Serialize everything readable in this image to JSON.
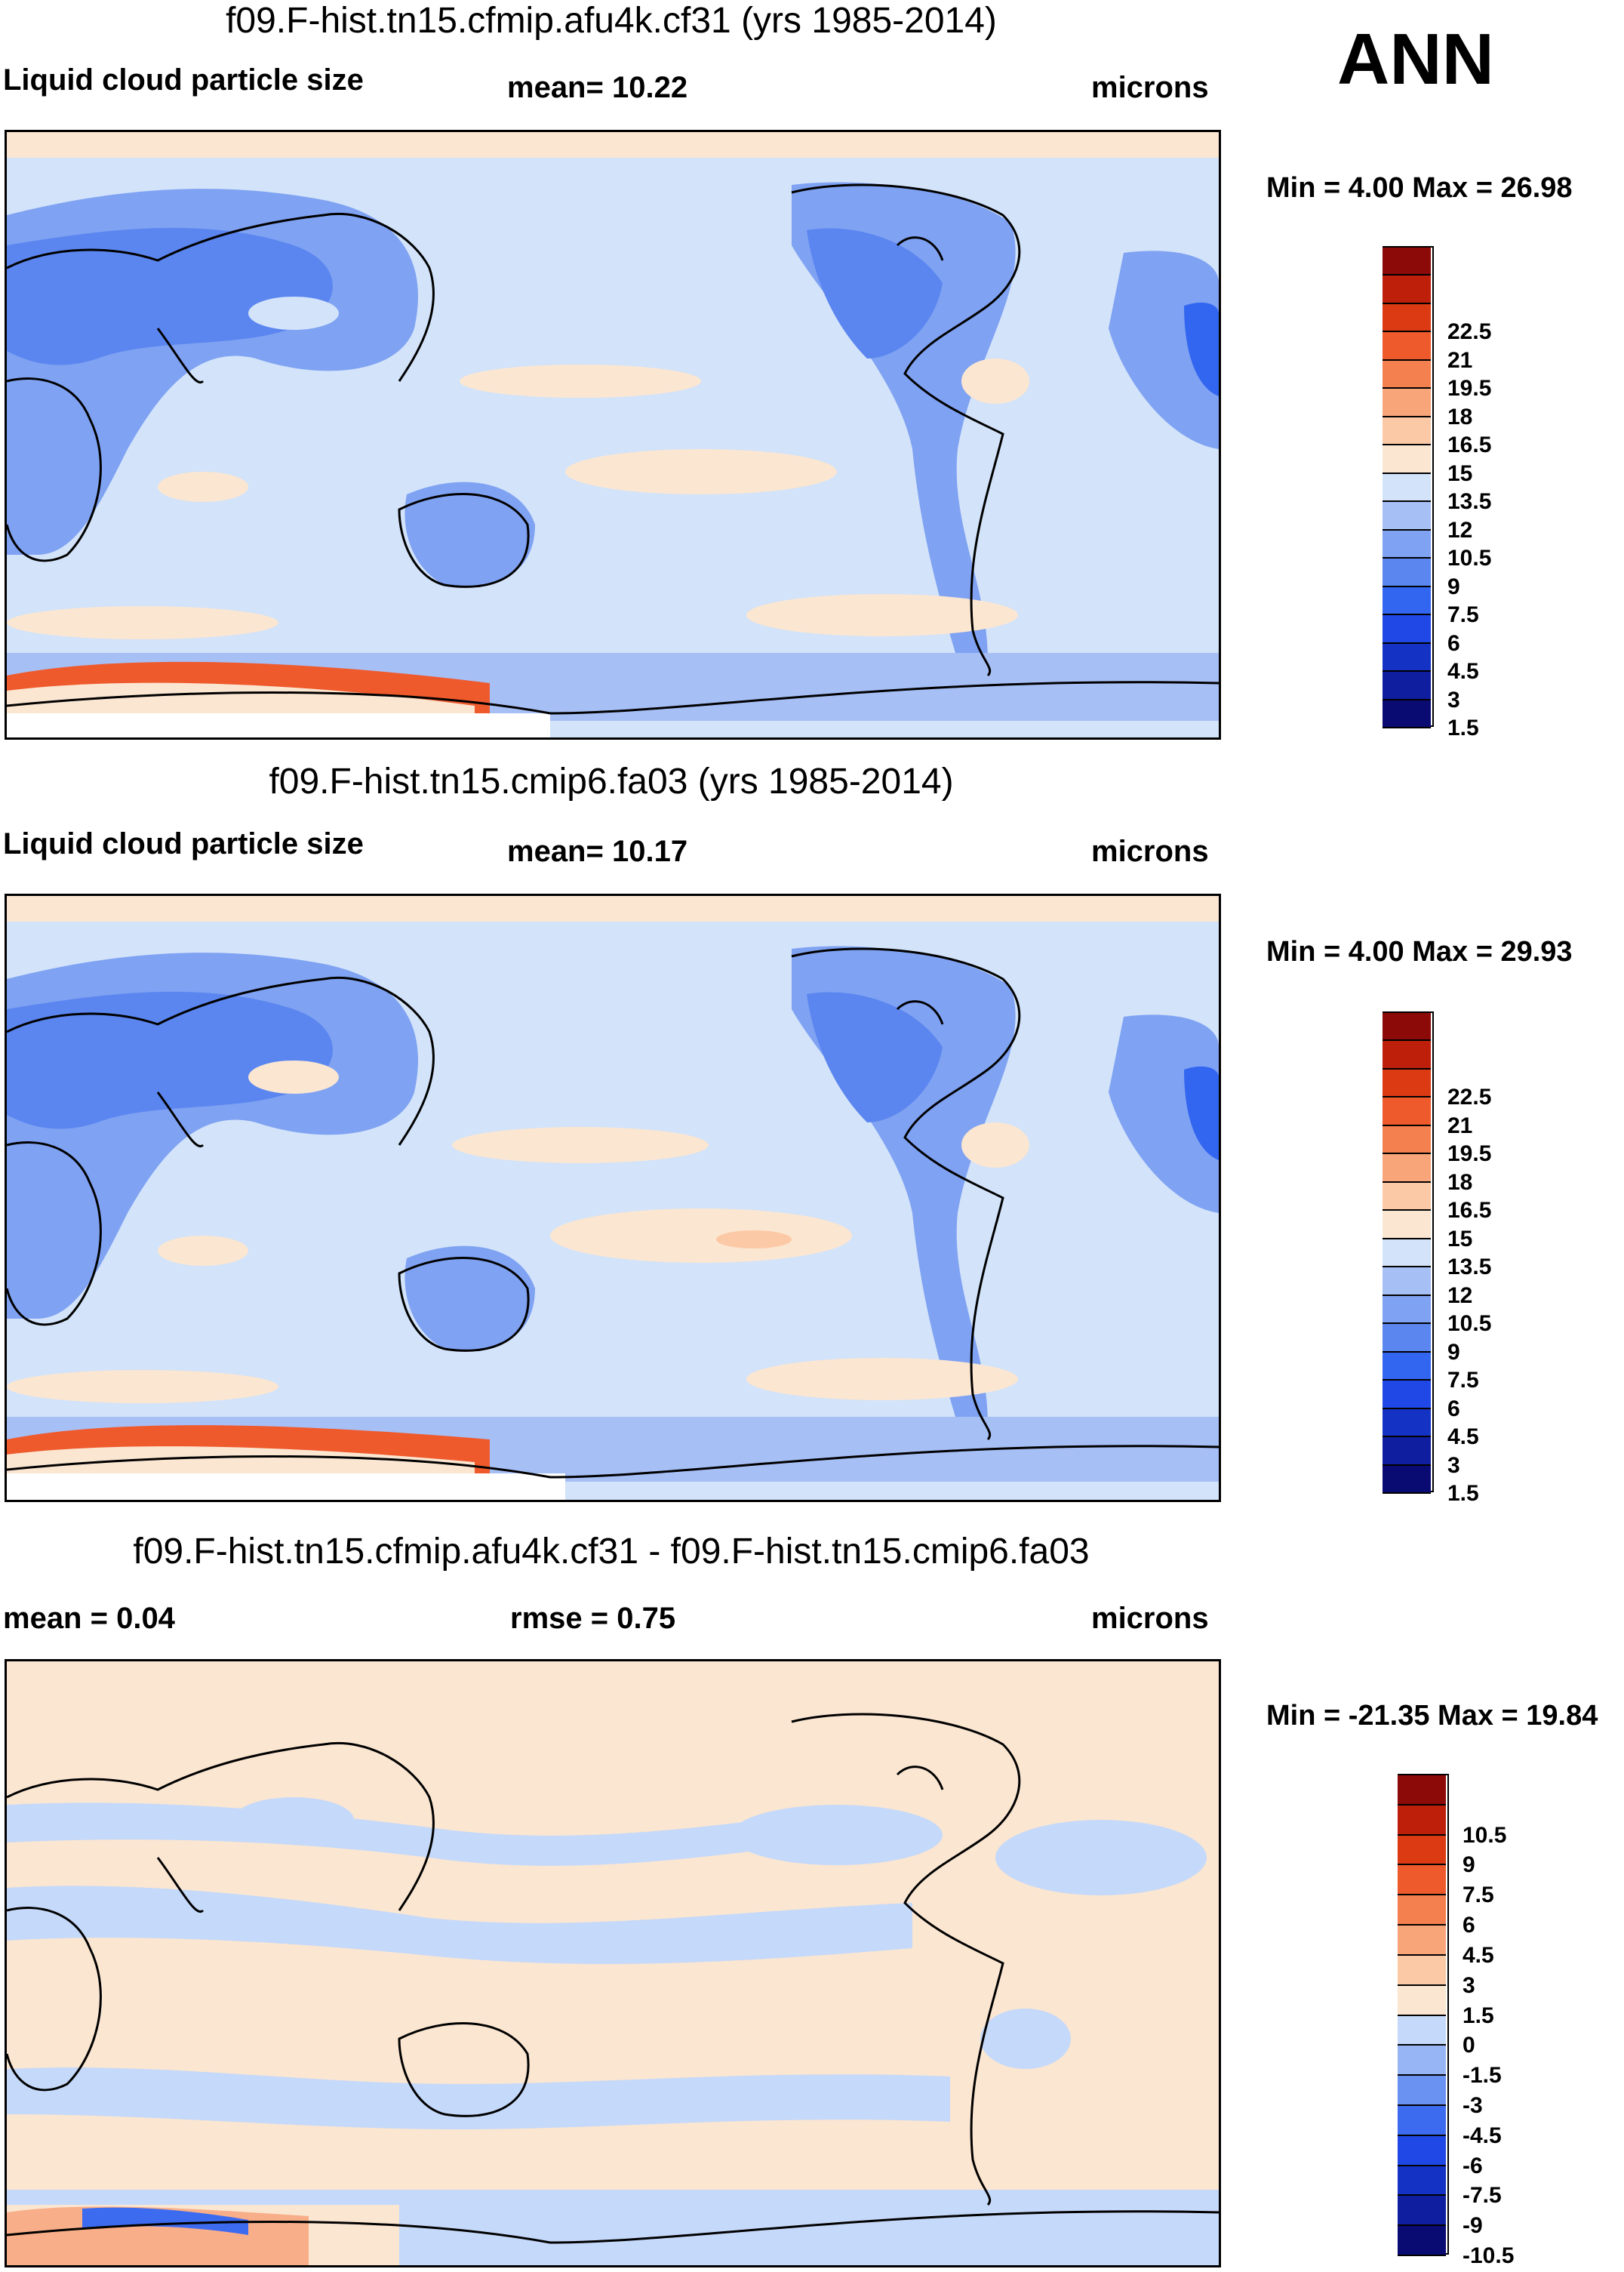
{
  "season": "ANN",
  "colors": {
    "abs_scale": [
      "#0a0a73",
      "#0f1e9e",
      "#1432c4",
      "#1f48e6",
      "#3366f0",
      "#5b86f0",
      "#7fa2f2",
      "#a6bff5",
      "#d2e3fa",
      "#fbe6d1",
      "#fcc9a6",
      "#f9a57a",
      "#f5804f",
      "#ef5a2d",
      "#dc3a12",
      "#bd1f0a",
      "#8c0a08"
    ],
    "diff_scale": [
      "#0a0a73",
      "#0f1e9e",
      "#1432c4",
      "#1f48e6",
      "#3d6bf0",
      "#6a92f2",
      "#97b5f5",
      "#c5d9fa",
      "#fbe6d1",
      "#fcc9a6",
      "#f9a57a",
      "#f5804f",
      "#ef5a2d",
      "#dc3a12",
      "#bd1f0a",
      "#8c0a08"
    ]
  },
  "panels": [
    {
      "title": "f09.F-hist.tn15.cfmip.afu4k.cf31 (yrs 1985-2014)",
      "left_label": "Liquid cloud particle size",
      "center_label": "mean=  10.22",
      "units": "microns",
      "minmax": "Min =   4.00 Max =  26.98",
      "kind": "abs",
      "ticks": [
        "22.5",
        "21",
        "19.5",
        "18",
        "16.5",
        "15",
        "13.5",
        "12",
        "10.5",
        "9",
        "7.5",
        "6",
        "4.5",
        "3",
        "1.5"
      ]
    },
    {
      "title": "f09.F-hist.tn15.cmip6.fa03 (yrs 1985-2014)",
      "left_label": "Liquid cloud particle size",
      "center_label": "mean=  10.17",
      "units": "microns",
      "minmax": "Min =   4.00 Max =  29.93",
      "kind": "abs",
      "ticks": [
        "22.5",
        "21",
        "19.5",
        "18",
        "16.5",
        "15",
        "13.5",
        "12",
        "10.5",
        "9",
        "7.5",
        "6",
        "4.5",
        "3",
        "1.5"
      ]
    },
    {
      "title": "f09.F-hist.tn15.cfmip.afu4k.cf31 - f09.F-hist.tn15.cmip6.fa03",
      "left_label": "mean =   0.04",
      "center_label": "rmse =   0.75",
      "units": "microns",
      "minmax": "Min = -21.35 Max =  19.84",
      "kind": "diff",
      "ticks": [
        "10.5",
        "9",
        "7.5",
        "6",
        "4.5",
        "3",
        "1.5",
        "0",
        "-1.5",
        "-3",
        "-4.5",
        "-6",
        "-7.5",
        "-9",
        "-10.5"
      ]
    }
  ]
}
